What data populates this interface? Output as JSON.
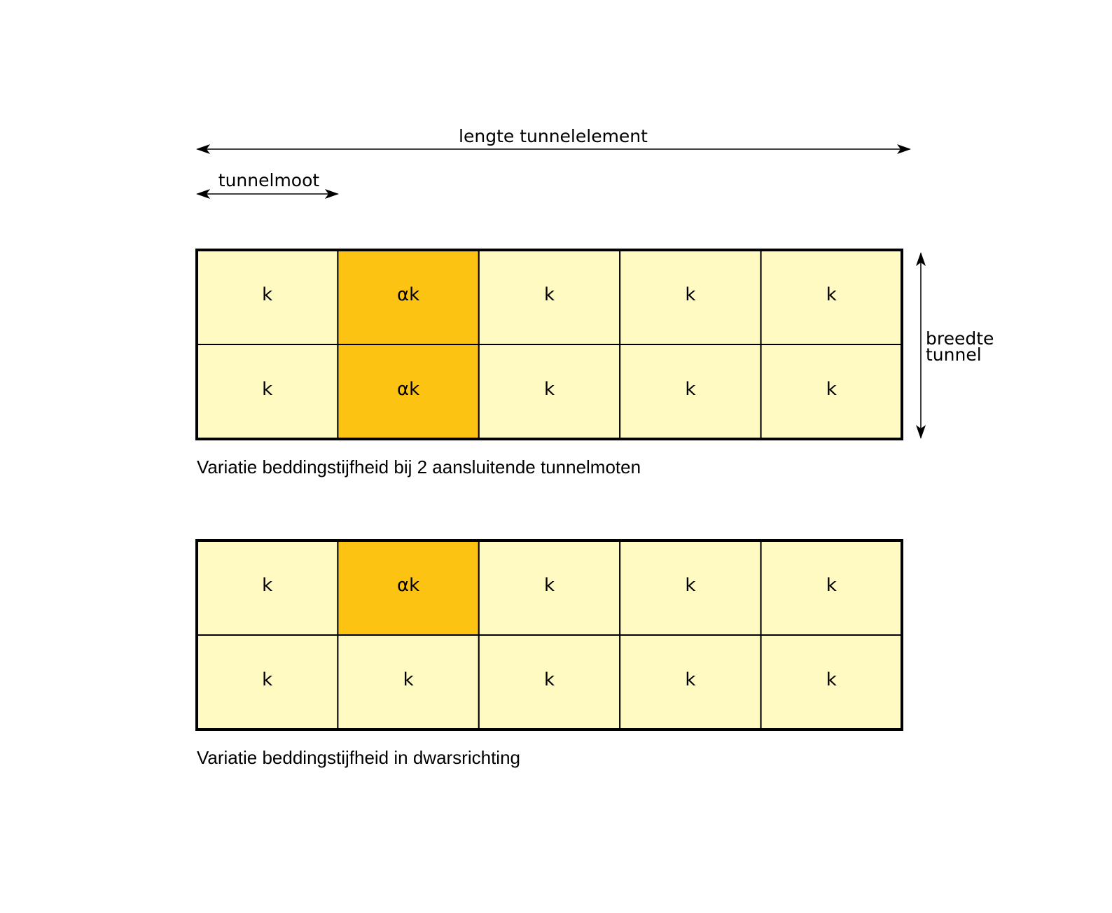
{
  "dimensions": {
    "length_label": "lengte tunnelelement",
    "segment_label": "tunnelmoot",
    "width_label_line1": "breedte",
    "width_label_line2": "tunnel"
  },
  "colors": {
    "normal_cell": "#FFF9C2",
    "modified_cell": "#FDC312",
    "stroke": "#000000"
  },
  "grids": [
    {
      "caption": "Variatie beddingstijfheid bij 2 aansluitende tunnelmoten",
      "rows": [
        [
          "k",
          "αk",
          "k",
          "k",
          "k"
        ],
        [
          "k",
          "αk",
          "k",
          "k",
          "k"
        ]
      ]
    },
    {
      "caption": "Variatie beddingstijfheid in dwarsrichting",
      "rows": [
        [
          "k",
          "αk",
          "k",
          "k",
          "k"
        ],
        [
          "k",
          "k",
          "k",
          "k",
          "k"
        ]
      ]
    }
  ]
}
